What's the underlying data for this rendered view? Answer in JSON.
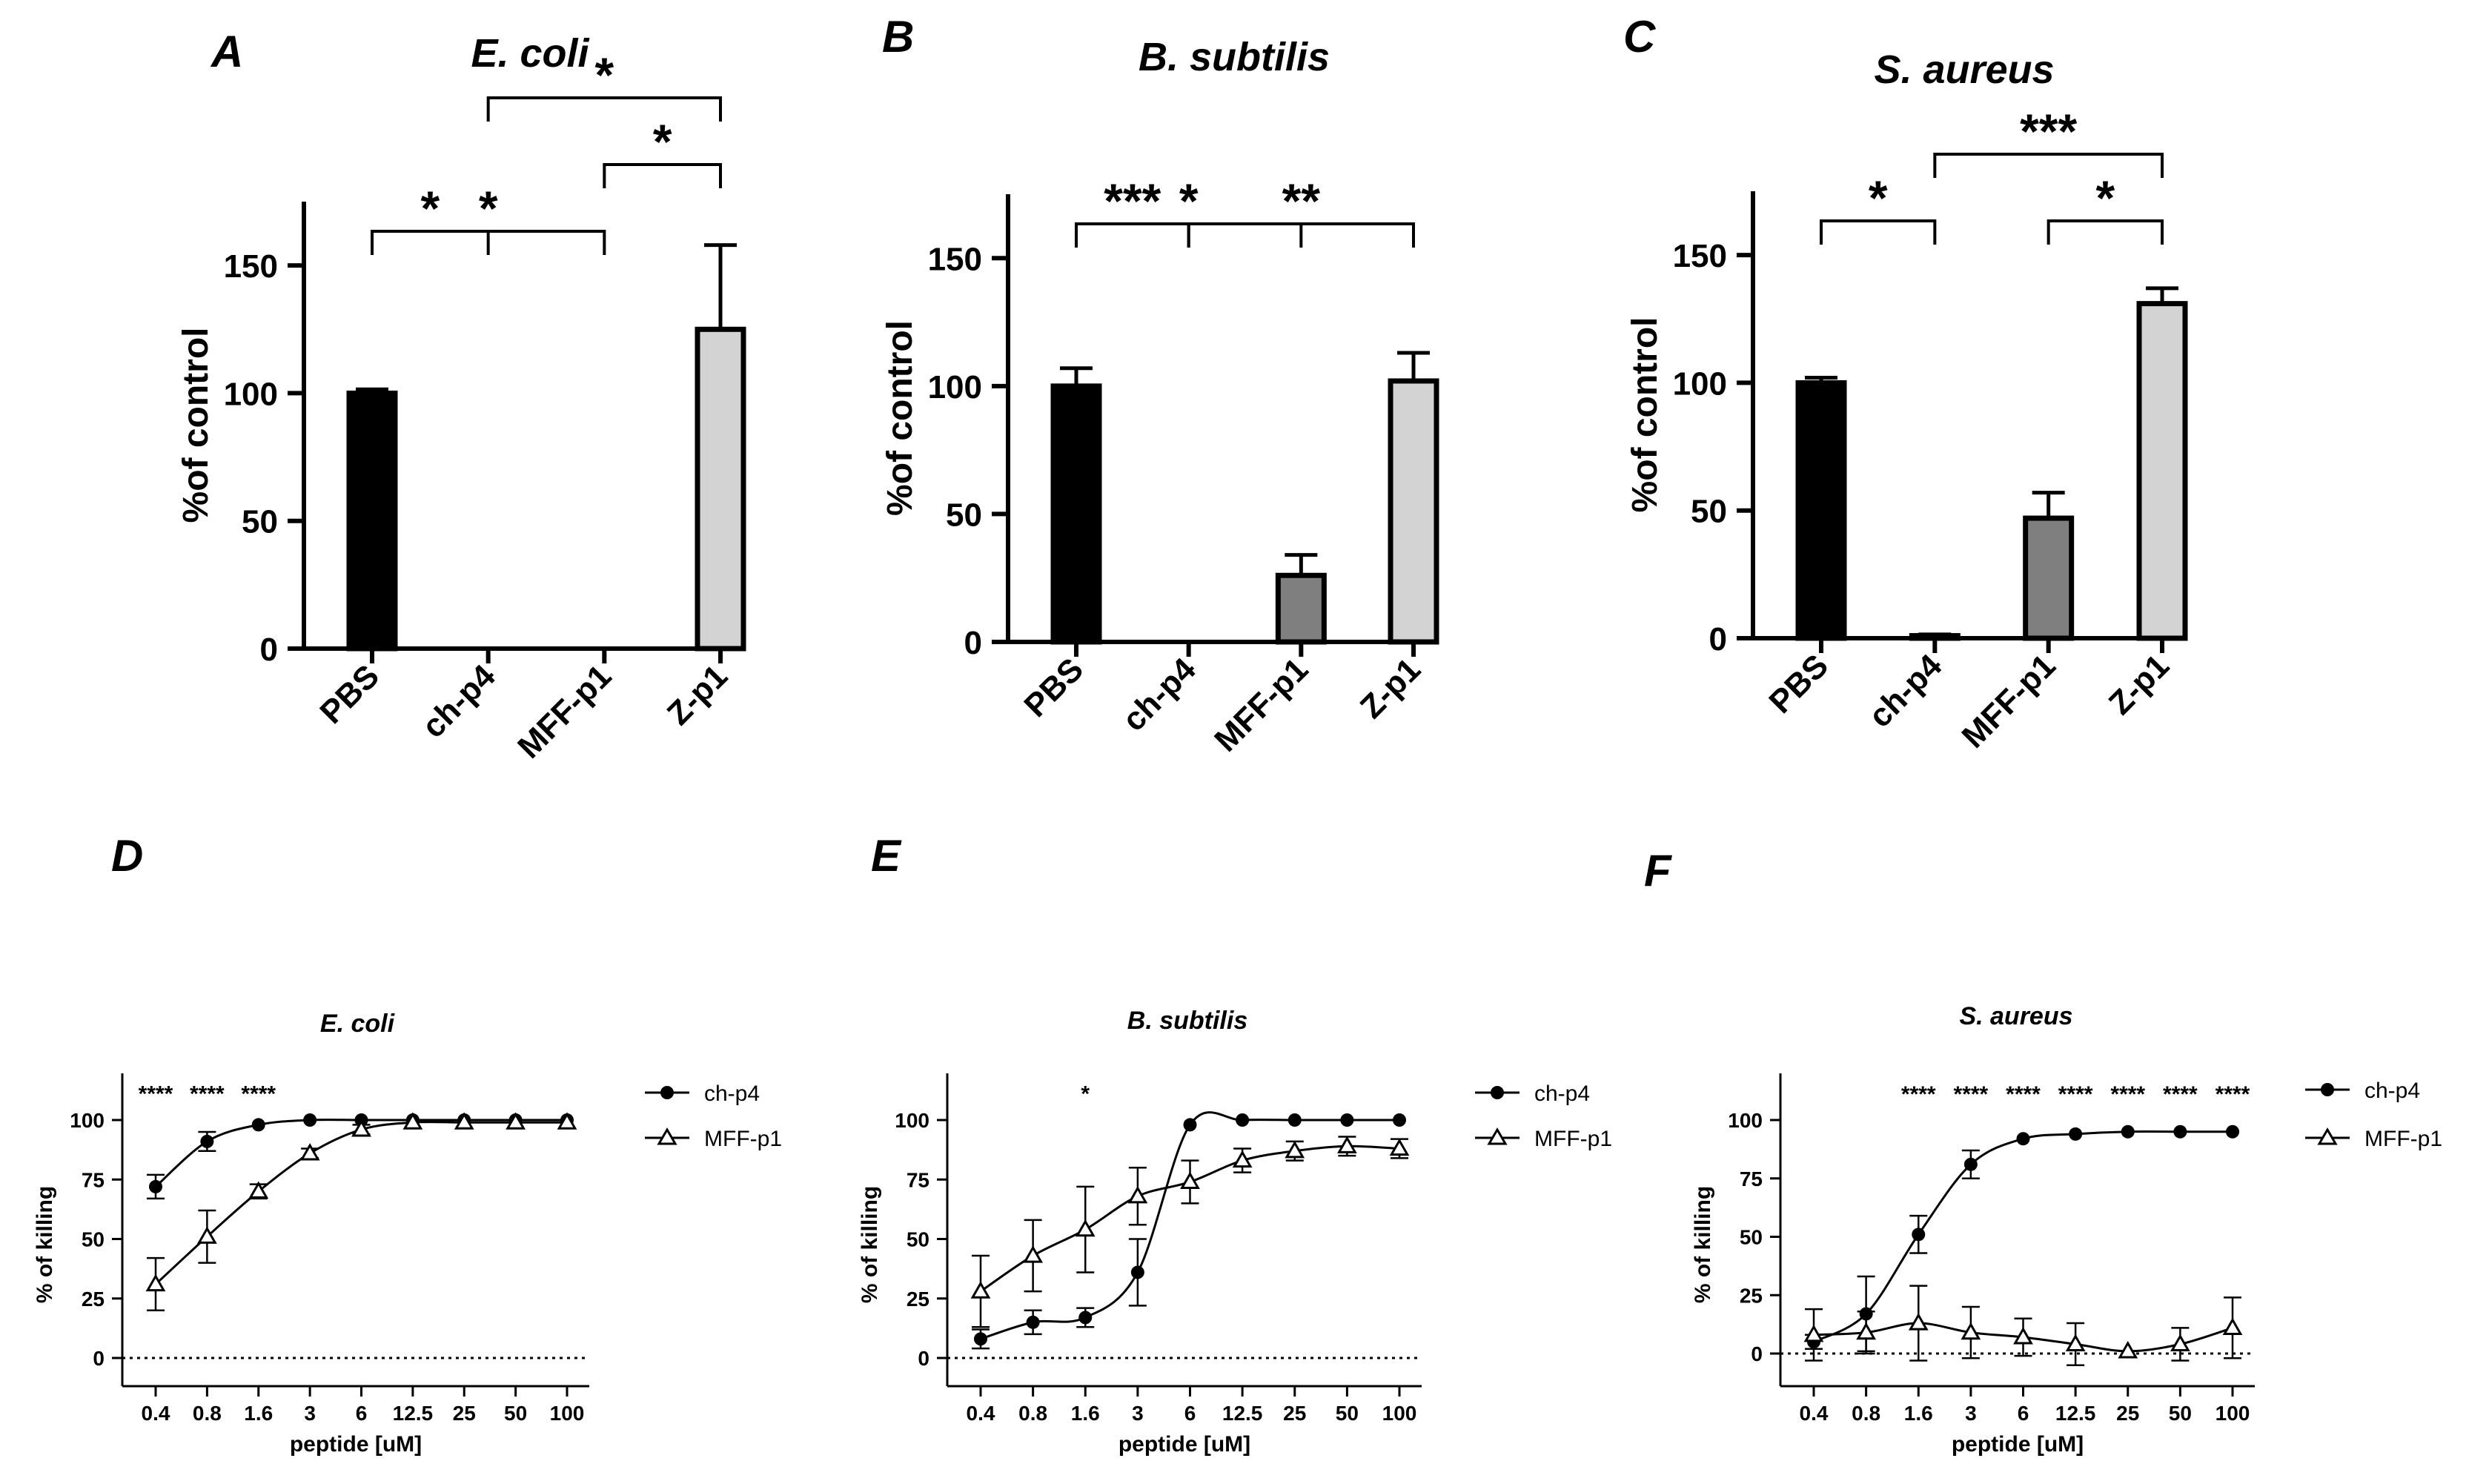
{
  "bar_panels": [
    {
      "letter": "A",
      "title": "E. coli",
      "ylabel": "%of control",
      "yticks": [
        "0",
        "50",
        "100",
        "150"
      ],
      "ymax": 175,
      "categories": [
        "PBS",
        "ch-p4",
        "MFF-p1",
        "Z-p1"
      ],
      "values": [
        100,
        0,
        0,
        125
      ],
      "errors": [
        1.5,
        0,
        0,
        33
      ],
      "brackets": [
        {
          "from": 0,
          "to": 1,
          "label": "*"
        },
        {
          "from": 0,
          "to": 2,
          "label": "*"
        },
        {
          "from": 2,
          "to": 3,
          "label": "*"
        },
        {
          "from": 1,
          "to": 3,
          "label": "*"
        }
      ]
    },
    {
      "letter": "B",
      "title": "B. subtilis",
      "ylabel": "%of control",
      "yticks": [
        "0",
        "50",
        "100",
        "150"
      ],
      "ymax": 175,
      "categories": [
        "PBS",
        "ch-p4",
        "MFF-p1",
        "Z-p1"
      ],
      "values": [
        100,
        0,
        26,
        102
      ],
      "errors": [
        7,
        0,
        8,
        11
      ],
      "brackets": [
        {
          "from": 1,
          "to": 3,
          "label": "**"
        },
        {
          "from": 0,
          "to": 2,
          "label": "*"
        },
        {
          "from": 0,
          "to": 1,
          "label": "***"
        }
      ]
    },
    {
      "letter": "C",
      "title": "S. aureus",
      "ylabel": "%of control",
      "yticks": [
        "0",
        "50",
        "100",
        "150"
      ],
      "ymax": 175,
      "categories": [
        "PBS",
        "ch-p4",
        "MFF-p1",
        "Z-p1"
      ],
      "values": [
        100,
        1,
        47,
        131
      ],
      "errors": [
        2,
        0.5,
        10,
        6
      ],
      "brackets": [
        {
          "from": 0,
          "to": 1,
          "label": "*"
        },
        {
          "from": 2,
          "to": 3,
          "label": "*"
        },
        {
          "from": 1,
          "to": 3,
          "label": "***"
        }
      ]
    }
  ],
  "line_panels": [
    {
      "letter": "D",
      "title": "E. coli",
      "ylabel": "% of killing",
      "xlabel": "peptide [uM]",
      "yticks": [
        "0",
        "25",
        "50",
        "75",
        "100"
      ],
      "xcats": [
        "0.4",
        "0.8",
        "1.6",
        "3",
        "6",
        "12.5",
        "25",
        "50",
        "100"
      ],
      "series": [
        {
          "name": "ch-p4",
          "marker": "filled-circle",
          "values": [
            72,
            91,
            98,
            100,
            100,
            100,
            100,
            100,
            100
          ],
          "errors": [
            5,
            4,
            1,
            0.5,
            0.5,
            0.5,
            0.5,
            0.5,
            0.5
          ]
        },
        {
          "name": "MFF-p1",
          "marker": "open-triangle",
          "values": [
            31,
            51,
            70,
            86,
            96,
            99,
            99,
            99,
            99
          ],
          "errors": [
            11,
            11,
            3,
            2,
            2,
            1,
            1,
            1,
            1
          ]
        }
      ],
      "annotations": [
        {
          "x_index": 0,
          "label": "****"
        },
        {
          "x_index": 1,
          "label": "****"
        },
        {
          "x_index": 2,
          "label": "****"
        }
      ]
    },
    {
      "letter": "E",
      "title": "B. subtilis",
      "ylabel": "% of killing",
      "xlabel": "peptide [uM]",
      "yticks": [
        "0",
        "25",
        "50",
        "75",
        "100"
      ],
      "xcats": [
        "0.4",
        "0.8",
        "1.6",
        "3",
        "6",
        "12.5",
        "25",
        "50",
        "100"
      ],
      "series": [
        {
          "name": "ch-p4",
          "marker": "filled-circle",
          "values": [
            8,
            15,
            17,
            36,
            98,
            100,
            100,
            100,
            100
          ],
          "errors": [
            4,
            5,
            4,
            14,
            1,
            0.5,
            0.5,
            0.5,
            0.5
          ]
        },
        {
          "name": "MFF-p1",
          "marker": "open-triangle",
          "values": [
            28,
            43,
            54,
            68,
            74,
            83,
            87,
            89,
            88
          ],
          "errors": [
            15,
            15,
            18,
            12,
            9,
            5,
            4,
            4,
            4
          ]
        }
      ],
      "annotations": [
        {
          "x_index": 2,
          "label": "*"
        }
      ]
    },
    {
      "letter": "F",
      "title": "S. aureus",
      "ylabel": "% of killing",
      "xlabel": "peptide [uM]",
      "yticks": [
        "0",
        "25",
        "50",
        "75",
        "100"
      ],
      "xcats": [
        "0.4",
        "0.8",
        "1.6",
        "3",
        "6",
        "12.5",
        "25",
        "50",
        "100"
      ],
      "series": [
        {
          "name": "ch-p4",
          "marker": "filled-circle",
          "values": [
            5,
            17,
            51,
            81,
            92,
            94,
            95,
            95,
            95
          ],
          "errors": [
            3,
            16,
            8,
            6,
            1,
            1,
            1,
            1,
            1
          ]
        },
        {
          "name": "MFF-p1",
          "marker": "open-triangle",
          "values": [
            8,
            9,
            13,
            9,
            7,
            4,
            1,
            4,
            11
          ],
          "errors": [
            11,
            9,
            16,
            11,
            8,
            9,
            1,
            7,
            13
          ]
        }
      ],
      "annotations": [
        {
          "x_index": 2,
          "label": "****"
        },
        {
          "x_index": 3,
          "label": "****"
        },
        {
          "x_index": 4,
          "label": "****"
        },
        {
          "x_index": 5,
          "label": "****"
        },
        {
          "x_index": 6,
          "label": "****"
        },
        {
          "x_index": 7,
          "label": "****"
        },
        {
          "x_index": 8,
          "label": "****"
        }
      ]
    }
  ],
  "colors": {
    "axis": "#000000",
    "bar_fills": [
      "#000000",
      "#ffffff",
      "#7f7f7f",
      "#d3d3d3"
    ]
  }
}
